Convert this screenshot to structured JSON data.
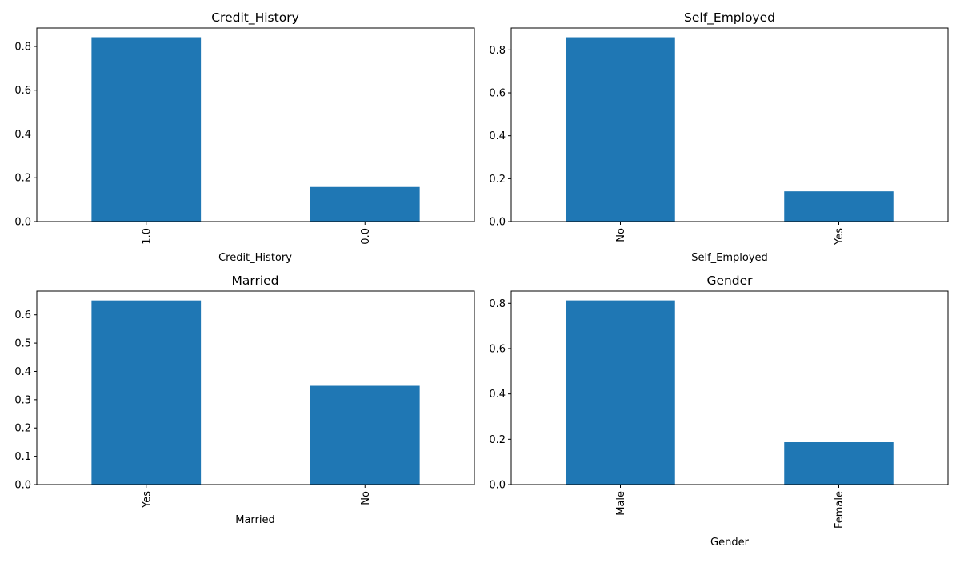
{
  "chart_data": [
    {
      "type": "bar",
      "title": "Credit_History",
      "xlabel": "Credit_History",
      "ylabel": "",
      "categories": [
        "1.0",
        "0.0"
      ],
      "values": [
        0.842,
        0.158
      ],
      "ylim": [
        0,
        0.884
      ],
      "yticks": [
        "0.0",
        "0.2",
        "0.4",
        "0.6",
        "0.8"
      ],
      "ytick_values": [
        0,
        0.2,
        0.4,
        0.6,
        0.8
      ],
      "color": "#1f77b4"
    },
    {
      "type": "bar",
      "title": "Self_Employed",
      "xlabel": "Self_Employed",
      "ylabel": "",
      "categories": [
        "No",
        "Yes"
      ],
      "values": [
        0.859,
        0.141
      ],
      "ylim": [
        0,
        0.902
      ],
      "yticks": [
        "0.0",
        "0.2",
        "0.4",
        "0.6",
        "0.8"
      ],
      "ytick_values": [
        0,
        0.2,
        0.4,
        0.6,
        0.8
      ],
      "color": "#1f77b4"
    },
    {
      "type": "bar",
      "title": "Married",
      "xlabel": "Married",
      "ylabel": "",
      "categories": [
        "Yes",
        "No"
      ],
      "values": [
        0.651,
        0.349
      ],
      "ylim": [
        0,
        0.684
      ],
      "yticks": [
        "0.0",
        "0.1",
        "0.2",
        "0.3",
        "0.4",
        "0.5",
        "0.6"
      ],
      "ytick_values": [
        0,
        0.1,
        0.2,
        0.3,
        0.4,
        0.5,
        0.6
      ],
      "color": "#1f77b4"
    },
    {
      "type": "bar",
      "title": "Gender",
      "xlabel": "Gender",
      "ylabel": "",
      "categories": [
        "Male",
        "Female"
      ],
      "values": [
        0.813,
        0.187
      ],
      "ylim": [
        0,
        0.854
      ],
      "yticks": [
        "0.0",
        "0.2",
        "0.4",
        "0.6",
        "0.8"
      ],
      "ytick_values": [
        0,
        0.2,
        0.4,
        0.6,
        0.8
      ],
      "color": "#1f77b4"
    }
  ]
}
